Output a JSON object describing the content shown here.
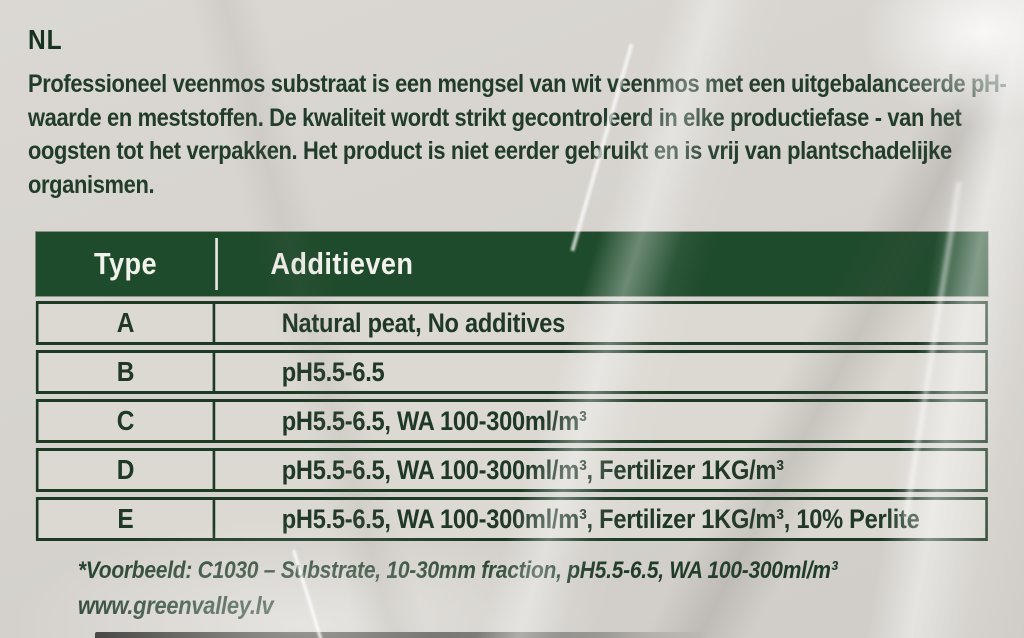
{
  "label": {
    "language_code": "NL",
    "description": "Professioneel veenmos substraat is een mengsel van wit veenmos met een uitgebalanceerde pH-waarde en meststoffen. De kwaliteit wordt strikt gecontroleerd in elke productiefase - van het oogsten tot het verpakken. Het product is niet eerder gebruikt en is vrij van plantschadelijke organismen."
  },
  "table": {
    "headers": [
      "Type",
      "Additieven"
    ],
    "rows": [
      {
        "type": "A",
        "additives": "Natural peat, No additives"
      },
      {
        "type": "B",
        "additives": "pH5.5-6.5"
      },
      {
        "type": "C",
        "additives": "pH5.5-6.5, WA 100-300ml/m³"
      },
      {
        "type": "D",
        "additives": "pH5.5-6.5, WA 100-300ml/m³, Fertilizer 1KG/m³"
      },
      {
        "type": "E",
        "additives": "pH5.5-6.5, WA 100-300ml/m³, Fertilizer 1KG/m³, 10% Perlite"
      }
    ]
  },
  "footer": {
    "example_note": "*Voorbeeld: C1030 – Substrate, 10-30mm fraction, pH5.5-6.5, WA 100-300ml/m³",
    "website": "www.greenvalley.lv"
  },
  "colors": {
    "text_green": "#223c2a",
    "header_green": "#1e4b2b",
    "border_green": "#1c3a24",
    "cell_background": "#dcd9d3",
    "bag_background": "#d6d3ce"
  }
}
